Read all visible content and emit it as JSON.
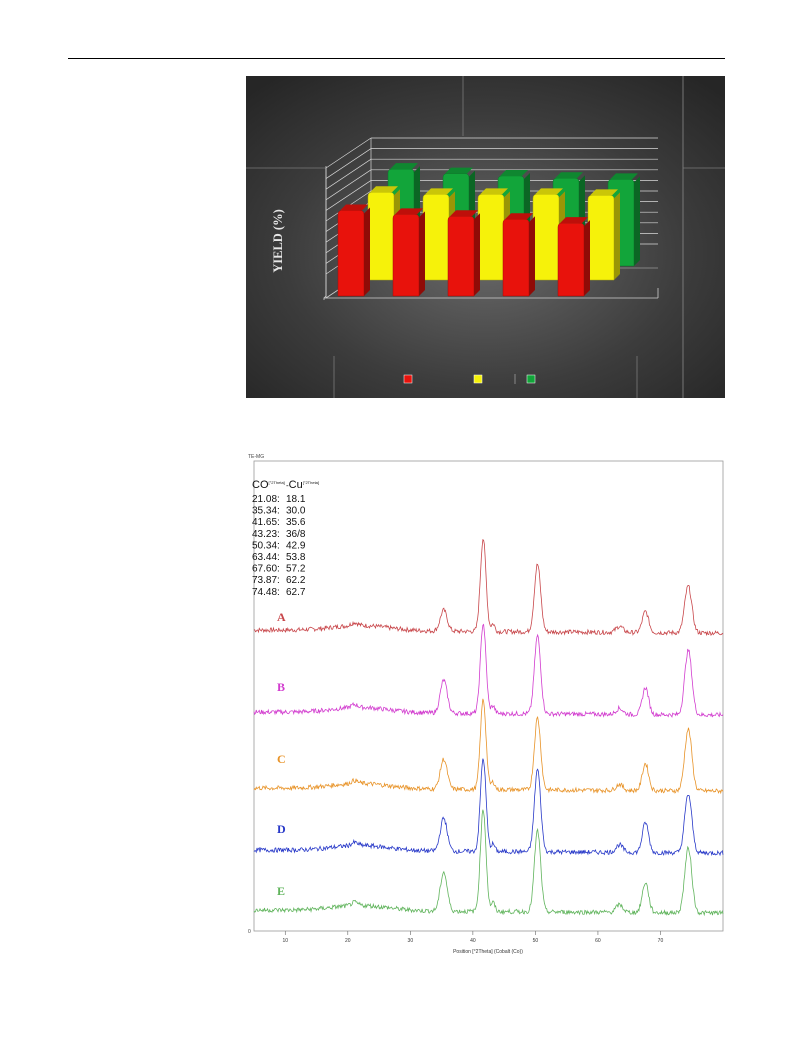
{
  "bar_chart": {
    "ylabel": "YIELD (%)",
    "colors": {
      "series1": "#e8120c",
      "series2": "#f6f20a",
      "series3": "#12a53a"
    }
  },
  "xrd_chart": {
    "corner_label": "TE-MG",
    "table": {
      "col1_header": "CO",
      "col1_unit": "[°2Theta]",
      "col2_header": "Cu",
      "col2_unit": "[°2Theta]",
      "rows": [
        [
          "21.08:",
          "18.1"
        ],
        [
          "35.34:",
          "30.0"
        ],
        [
          "41.65:",
          "35.6"
        ],
        [
          "43.23:",
          "36/8"
        ],
        [
          "50.34:",
          "42.9"
        ],
        [
          "63.44:",
          "53.8"
        ],
        [
          "67.60:",
          "57.2"
        ],
        [
          "73.87:",
          "62.2"
        ],
        [
          "74.48:",
          "62.7"
        ]
      ]
    },
    "xlabel": "Position [°2Theta] (Cobalt (Co))",
    "zero_label": "0",
    "ticks": [
      "10",
      "20",
      "30",
      "40",
      "50",
      "60",
      "70"
    ]
  },
  "chart_data": [
    {
      "type": "bar",
      "title": "",
      "xlabel": "",
      "ylabel": "YIELD (%)",
      "categories": [
        "",
        "",
        "",
        "",
        ""
      ],
      "series": [
        {
          "color": "#e8120c",
          "values": [
            88,
            84,
            82,
            79,
            75
          ]
        },
        {
          "color": "#f6f20a",
          "values": [
            86,
            84,
            84,
            84,
            83
          ]
        },
        {
          "color": "#12a53a",
          "values": [
            85,
            81,
            79,
            77,
            76
          ]
        }
      ],
      "legend_placement": "bottom-center",
      "grid": true,
      "projection": "3d"
    },
    {
      "type": "line",
      "title": "",
      "xlabel": "Position [°2Theta] (Cobalt (Co))",
      "ylabel": "",
      "xlim": [
        5,
        80
      ],
      "grid": false,
      "peaks_2theta": [
        21.08,
        35.34,
        41.65,
        43.23,
        50.34,
        63.44,
        67.6,
        73.87,
        74.48
      ],
      "series": [
        {
          "name": "A",
          "color": "#c8464a",
          "peak_heights": [
            0.02,
            0.14,
            0.62,
            0.05,
            0.45,
            0.04,
            0.14,
            0.03,
            0.3
          ]
        },
        {
          "name": "B",
          "color": "#d23ccf",
          "peak_heights": [
            0.02,
            0.22,
            0.6,
            0.05,
            0.52,
            0.04,
            0.18,
            0.03,
            0.42
          ]
        },
        {
          "name": "C",
          "color": "#e89328",
          "peak_heights": [
            0.02,
            0.2,
            0.6,
            0.05,
            0.48,
            0.04,
            0.18,
            0.03,
            0.4
          ]
        },
        {
          "name": "D",
          "color": "#2738c8",
          "peak_heights": [
            0.02,
            0.22,
            0.62,
            0.05,
            0.55,
            0.05,
            0.2,
            0.03,
            0.38
          ]
        },
        {
          "name": "E",
          "color": "#60b45c",
          "peak_heights": [
            0.02,
            0.26,
            0.68,
            0.06,
            0.54,
            0.05,
            0.2,
            0.03,
            0.42
          ]
        }
      ]
    }
  ]
}
